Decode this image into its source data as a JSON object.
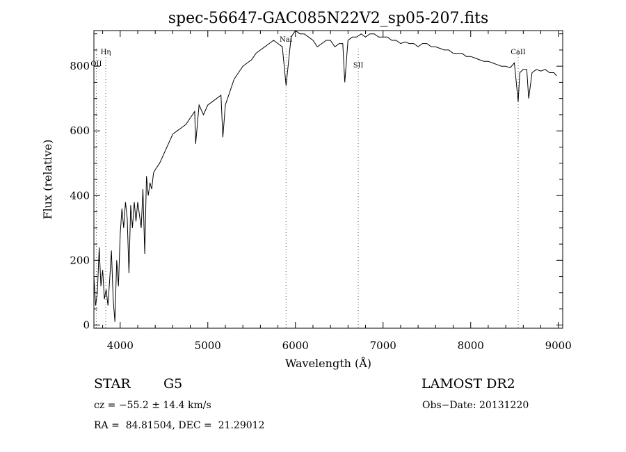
{
  "chart_data": {
    "type": "line",
    "title": "spec-56647-GAC085N22V2_sp05-207.fits",
    "xlabel": "Wavelength (Å)",
    "ylabel": "Flux (relative)",
    "xlim": [
      3700,
      9050
    ],
    "ylim": [
      -10,
      910
    ],
    "xticks": [
      4000,
      5000,
      6000,
      7000,
      8000,
      9000
    ],
    "yticks": [
      0,
      200,
      400,
      600,
      800
    ],
    "grid": false,
    "series": [
      {
        "x": [
          3700,
          3720,
          3740,
          3760,
          3780,
          3800,
          3820,
          3840,
          3860,
          3880,
          3900,
          3920,
          3940,
          3960,
          3980,
          4000,
          4020,
          4040,
          4060,
          4080,
          4100,
          4120,
          4140,
          4160,
          4180,
          4200,
          4220,
          4240,
          4260,
          4280,
          4300,
          4320,
          4340,
          4360,
          4380,
          4400,
          4450,
          4500,
          4550,
          4600,
          4650,
          4700,
          4750,
          4800,
          4850,
          4861,
          4900,
          4950,
          5000,
          5050,
          5100,
          5150,
          5172,
          5200,
          5250,
          5300,
          5350,
          5400,
          5450,
          5500,
          5550,
          5600,
          5650,
          5700,
          5750,
          5800,
          5850,
          5893,
          5950,
          6000,
          6050,
          6100,
          6150,
          6200,
          6250,
          6300,
          6350,
          6400,
          6450,
          6500,
          6540,
          6563,
          6600,
          6650,
          6700,
          6750,
          6800,
          6850,
          6900,
          6950,
          7000,
          7050,
          7100,
          7150,
          7200,
          7250,
          7300,
          7350,
          7400,
          7450,
          7500,
          7550,
          7600,
          7650,
          7700,
          7750,
          7800,
          7850,
          7900,
          7950,
          8000,
          8050,
          8100,
          8150,
          8200,
          8250,
          8300,
          8350,
          8400,
          8450,
          8498,
          8542,
          8560,
          8600,
          8640,
          8662,
          8700,
          8750,
          8800,
          8850,
          8900,
          8950,
          8980
        ],
        "y": [
          150,
          60,
          100,
          240,
          120,
          170,
          80,
          110,
          60,
          140,
          230,
          80,
          10,
          200,
          120,
          280,
          360,
          300,
          380,
          330,
          160,
          370,
          300,
          380,
          320,
          380,
          340,
          300,
          420,
          220,
          460,
          400,
          440,
          420,
          470,
          480,
          500,
          530,
          560,
          590,
          600,
          610,
          620,
          640,
          660,
          560,
          680,
          650,
          680,
          690,
          700,
          710,
          580,
          680,
          720,
          760,
          780,
          800,
          810,
          820,
          840,
          850,
          860,
          870,
          880,
          870,
          860,
          740,
          890,
          910,
          900,
          900,
          890,
          880,
          860,
          870,
          880,
          880,
          860,
          870,
          870,
          750,
          880,
          890,
          890,
          900,
          890,
          900,
          900,
          890,
          890,
          890,
          880,
          880,
          870,
          875,
          870,
          870,
          860,
          870,
          870,
          860,
          860,
          855,
          850,
          850,
          840,
          840,
          840,
          830,
          830,
          825,
          820,
          815,
          815,
          810,
          805,
          800,
          800,
          795,
          810,
          690,
          780,
          790,
          790,
          700,
          780,
          790,
          785,
          790,
          780,
          780,
          770
        ]
      }
    ],
    "markers": [
      {
        "label": "Hη",
        "x": 3835
      },
      {
        "label": "OII",
        "x": 3727
      },
      {
        "label": "NaI",
        "x": 5893
      },
      {
        "label": "SII",
        "x": 6717
      },
      {
        "label": "CaII",
        "x": 8542
      }
    ]
  },
  "info": {
    "object_type": "STAR",
    "subclass": "G5",
    "survey": "LAMOST DR2",
    "cz": "cz = −55.2 ± 14.4 km/s",
    "obs_date": "Obs−Date: 20131220",
    "coords": "RA =  84.81504, DEC =  21.29012"
  }
}
